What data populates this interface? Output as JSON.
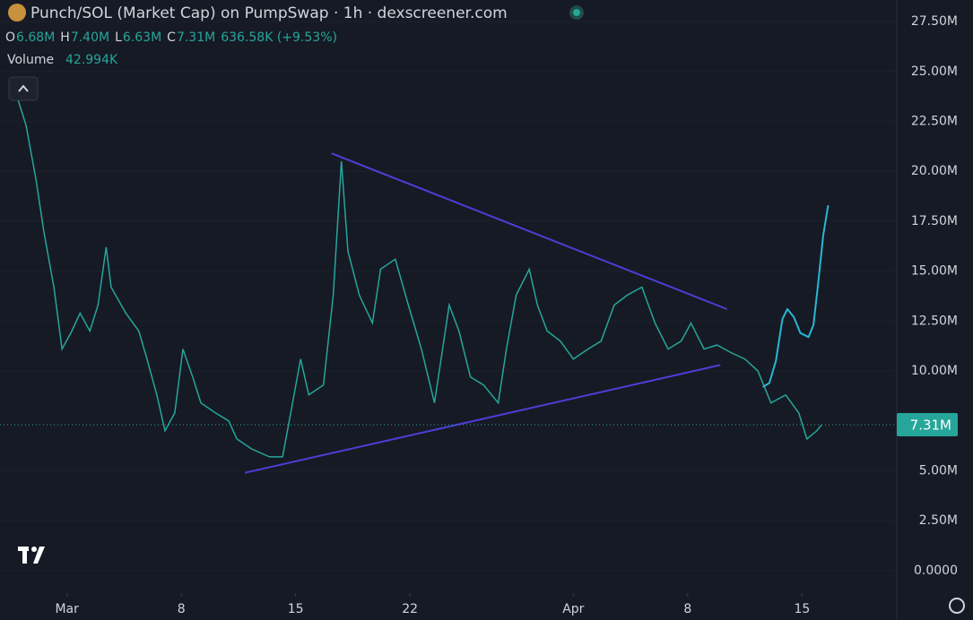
{
  "chart_data": {
    "type": "line",
    "title": "Punch/SOL (Market Cap) on PumpSwap · 1h · dexscreener.com",
    "ohlc": [
      {
        "label": "O",
        "value": "6.68M"
      },
      {
        "label": "H",
        "value": "7.40M"
      },
      {
        "label": "L",
        "value": "6.63M"
      },
      {
        "label": "C",
        "value": "7.31M"
      }
    ],
    "change": "636.58K (+9.53%)",
    "volume_label": "Volume",
    "volume_value": "42.994K",
    "last_price": {
      "value": 7.31,
      "label": "7.31M"
    },
    "color": "#26a69a",
    "x": [
      -2.0,
      -1.5,
      -0.9,
      -0.4,
      0.2,
      0.7,
      1.3,
      1.8,
      2.4,
      2.9,
      3.4,
      3.7,
      4.6,
      5.4,
      5.9,
      6.5,
      7.0,
      7.6,
      8.1,
      8.7,
      9.2,
      10.1,
      10.9,
      11.4,
      12.3,
      13.4,
      14.2,
      14.7,
      15.3,
      15.8,
      16.7,
      17.3,
      17.8,
      18.2,
      18.9,
      19.7,
      20.2,
      21.1,
      21.9,
      22.7,
      23.5,
      24.4,
      25.0,
      25.7,
      26.5,
      27.4,
      27.9,
      28.5,
      29.3,
      29.8,
      30.4,
      31.2,
      32.0,
      32.9,
      33.7,
      34.5,
      35.3,
      36.2,
      37.0,
      37.8,
      38.6,
      39.2,
      40.0,
      40.8,
      41.7,
      42.5,
      43.3,
      44.1,
      45.0,
      45.8,
      46.3,
      46.9,
      47.2
    ],
    "values": [
      23.6,
      22.3,
      19.6,
      16.9,
      14.2,
      11.1,
      12,
      12.9,
      12,
      13.3,
      16.2,
      14.2,
      12.9,
      12,
      10.6,
      8.8,
      7.0,
      7.9,
      11.1,
      9.7,
      8.4,
      7.9,
      7.5,
      6.6,
      6.1,
      5.7,
      5.7,
      7.9,
      10.6,
      8.8,
      9.3,
      13.8,
      20.5,
      16,
      13.8,
      12.4,
      15.1,
      15.6,
      13.3,
      11.1,
      8.4,
      13.3,
      12,
      9.7,
      9.3,
      8.4,
      11.1,
      13.8,
      15.1,
      13.3,
      12,
      11.5,
      10.6,
      11.1,
      11.5,
      13.3,
      13.8,
      14.2,
      12.4,
      11.1,
      11.5,
      12.4,
      11.1,
      11.3,
      10.9,
      10.6,
      10,
      8.4,
      8.8,
      7.9,
      6.6,
      7.0,
      7.3
    ],
    "drawings": [
      {
        "color": "#4b3fd6",
        "x": [
          17.2,
          41.4
        ],
        "values": [
          20.9,
          13.1
        ]
      },
      {
        "color": "#4b3fd6",
        "x": [
          11.9,
          41.0
        ],
        "values": [
          4.9,
          10.3
        ]
      },
      {
        "color": "#29b6d6",
        "x": [
          43.6,
          44.0,
          44.4,
          44.8,
          45.1,
          45.5,
          45.9,
          46.4,
          46.7,
          47.0,
          47.3,
          47.6
        ],
        "values": [
          9.2,
          9.4,
          10.5,
          12.6,
          13.1,
          12.7,
          11.9,
          11.7,
          12.3,
          14.5,
          16.8,
          18.3
        ]
      }
    ],
    "xlim": [
      -3.1,
      51.8
    ],
    "ylim": [
      -2.47,
      28.58
    ],
    "xticks": [
      {
        "value": 1,
        "label": "Mar"
      },
      8,
      15,
      22,
      {
        "value": 32,
        "label": "Apr"
      },
      {
        "value": 39,
        "label": "8"
      },
      {
        "value": 46,
        "label": "15"
      }
    ],
    "yticks": [
      {
        "value": 0,
        "label": "0.0000"
      },
      {
        "value": 2.5,
        "label": "2.50M"
      },
      {
        "value": 5,
        "label": "5.00M"
      },
      {
        "value": 10,
        "label": "10.00M"
      },
      {
        "value": 12.5,
        "label": "12.50M"
      },
      {
        "value": 15,
        "label": "15.00M"
      },
      {
        "value": 17.5,
        "label": "17.50M"
      },
      {
        "value": 20,
        "label": "20.00M"
      },
      {
        "value": 22.5,
        "label": "22.50M"
      },
      {
        "value": 25,
        "label": "25.00M"
      },
      {
        "value": 27.5,
        "label": "27.50M"
      }
    ]
  }
}
